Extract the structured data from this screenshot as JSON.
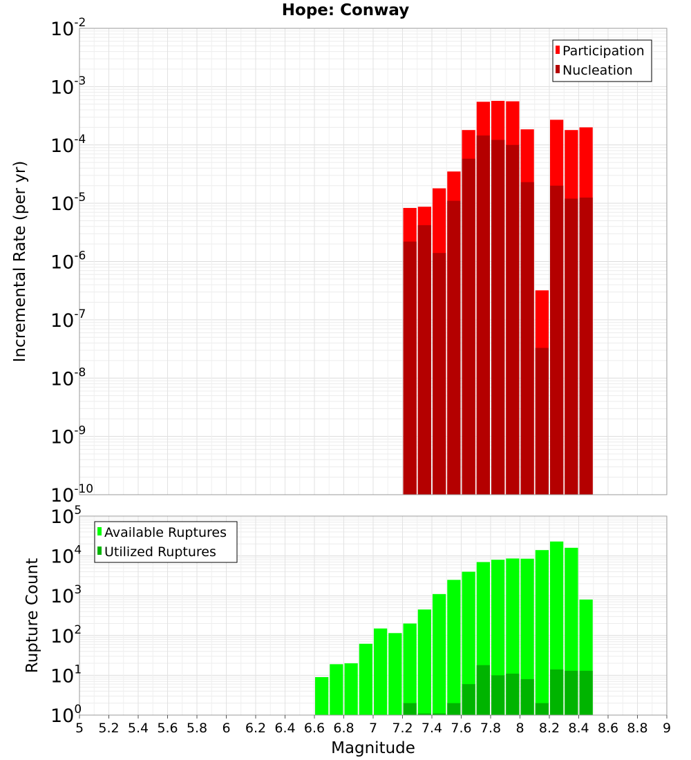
{
  "chart_data": [
    {
      "type": "bar",
      "title": "Hope: Conway",
      "xlabel": "Magnitude",
      "ylabel": "Incremental Rate (per yr)",
      "xlim": [
        5,
        9
      ],
      "ylim": [
        1e-10,
        0.01
      ],
      "yscale": "log",
      "ytick_exponents": [
        -2,
        -3,
        -4,
        -5,
        -6,
        -7,
        -8,
        -9,
        -10
      ],
      "grid": true,
      "legend_position": "top-right",
      "bin_width": 0.1,
      "x": [
        7.25,
        7.35,
        7.45,
        7.55,
        7.65,
        7.75,
        7.85,
        7.95,
        8.05,
        8.15,
        8.25,
        8.35,
        8.45
      ],
      "series": [
        {
          "name": "Participation",
          "color": "#ff0000",
          "values": [
            8.3e-06,
            8.7e-06,
            1.8e-05,
            3.5e-05,
            0.00018,
            0.00055,
            0.00057,
            0.00056,
            0.000185,
            3.2e-07,
            0.00027,
            0.00018,
            0.0002
          ]
        },
        {
          "name": "Nucleation",
          "color": "#b40000",
          "values": [
            2.2e-06,
            4.2e-06,
            1.4e-06,
            1.1e-05,
            5.8e-05,
            0.000145,
            0.000122,
            0.0001,
            2.3e-05,
            3.3e-08,
            2e-05,
            1.2e-05,
            1.25e-05
          ]
        }
      ]
    },
    {
      "type": "bar",
      "title": "",
      "xlabel": "Magnitude",
      "ylabel": "Rupture Count",
      "xlim": [
        5,
        9
      ],
      "ylim": [
        1,
        100000.0
      ],
      "yscale": "log",
      "ytick_exponents": [
        5,
        4,
        3,
        2,
        1,
        0
      ],
      "grid": true,
      "legend_position": "top-left",
      "xtick_labels": [
        "5",
        "5.2",
        "5.4",
        "5.6",
        "5.8",
        "6",
        "6.2",
        "6.4",
        "6.6",
        "6.8",
        "7",
        "7.2",
        "7.4",
        "7.6",
        "7.8",
        "8",
        "8.2",
        "8.4",
        "8.6",
        "8.8",
        "9"
      ],
      "bin_width": 0.1,
      "x": [
        6.65,
        6.75,
        6.85,
        6.95,
        7.05,
        7.15,
        7.25,
        7.35,
        7.45,
        7.55,
        7.65,
        7.75,
        7.85,
        7.95,
        8.05,
        8.15,
        8.25,
        8.35,
        8.45
      ],
      "series": [
        {
          "name": "Available Ruptures",
          "color": "#00ff00",
          "values": [
            9,
            19,
            20,
            62,
            150,
            115,
            200,
            450,
            1100,
            2500,
            4000,
            7000,
            8000,
            8600,
            8500,
            14000,
            23000,
            16000,
            800
          ]
        },
        {
          "name": "Utilized Ruptures",
          "color": "#00b400",
          "values": [
            0,
            0,
            0,
            0,
            0,
            0,
            2,
            1.1,
            1.1,
            2,
            6,
            18,
            10,
            11,
            8,
            2,
            14,
            13,
            13
          ]
        }
      ]
    }
  ]
}
